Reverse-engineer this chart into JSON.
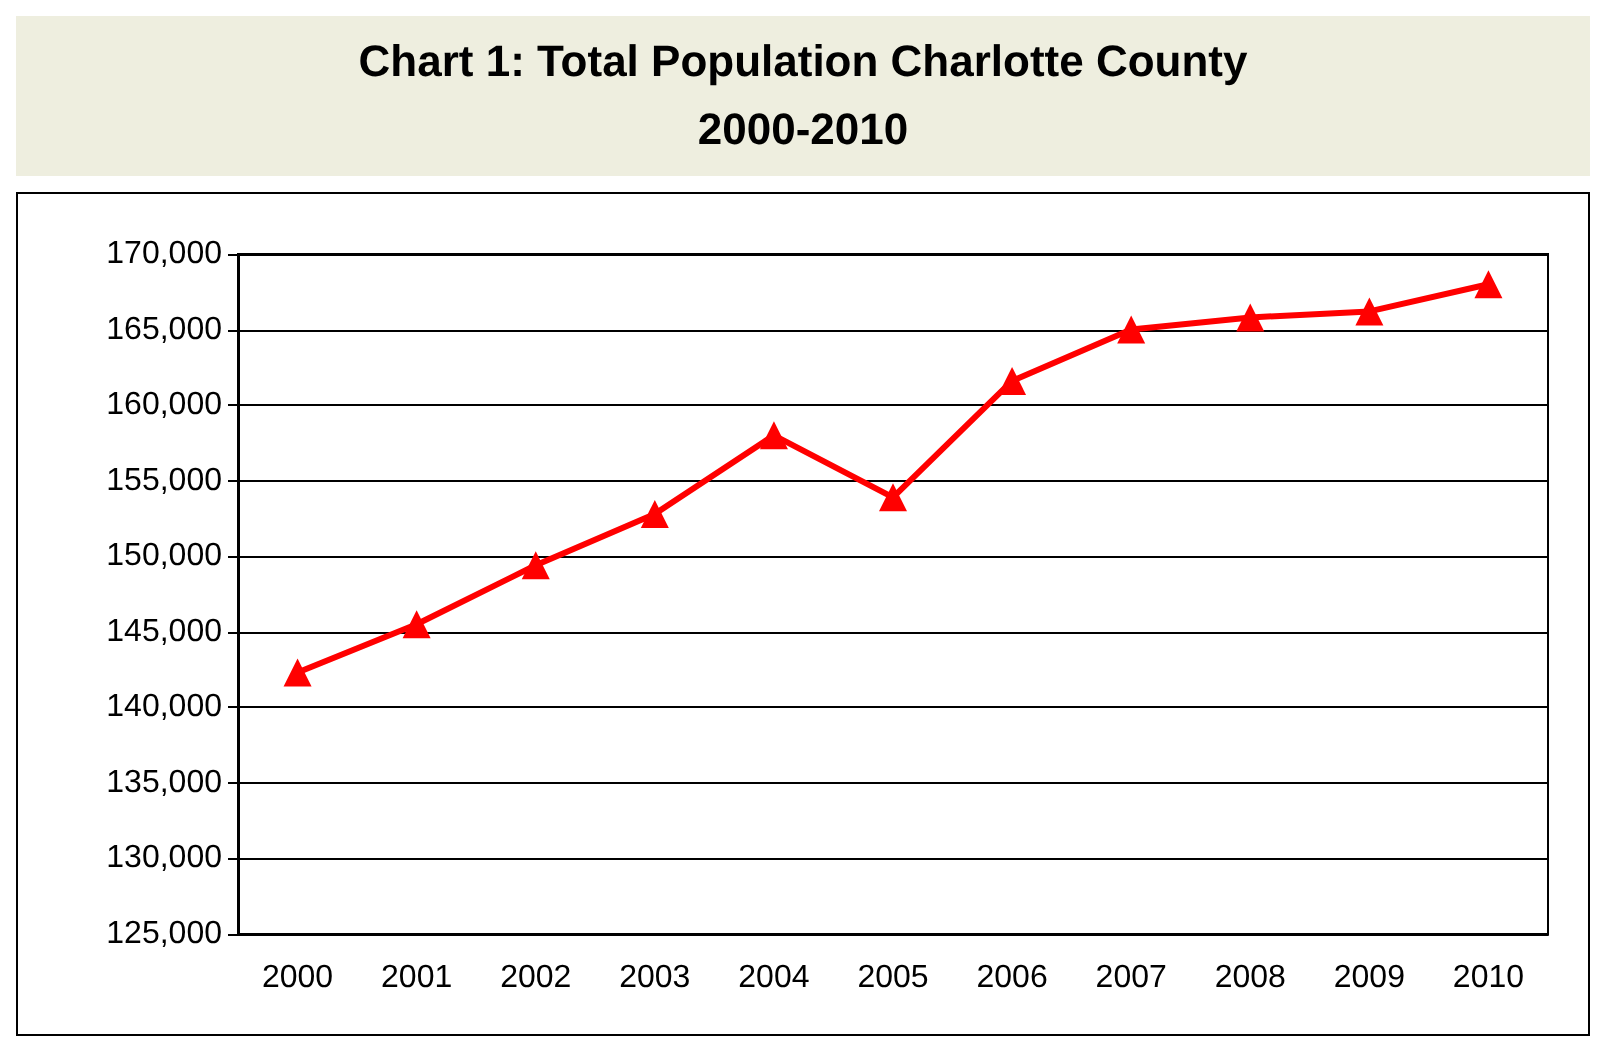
{
  "chart_data": {
    "type": "line",
    "title": "Chart 1: Total Population Charlotte County\n2000-2010",
    "categories": [
      "2000",
      "2001",
      "2002",
      "2003",
      "2004",
      "2005",
      "2006",
      "2007",
      "2008",
      "2009",
      "2010"
    ],
    "series": [
      {
        "color": "#ff0000",
        "values": [
          142300,
          145500,
          149400,
          152800,
          158000,
          153900,
          161600,
          165000,
          165800,
          166200,
          168000
        ]
      }
    ],
    "ylim": [
      125000,
      170000
    ],
    "yticks": [
      {
        "value": 125000,
        "label": "125,000"
      },
      {
        "value": 130000,
        "label": "130,000"
      },
      {
        "value": 135000,
        "label": "135,000"
      },
      {
        "value": 140000,
        "label": "140,000"
      },
      {
        "value": 145000,
        "label": "145,000"
      },
      {
        "value": 150000,
        "label": "150,000"
      },
      {
        "value": 155000,
        "label": "155,000"
      },
      {
        "value": 160000,
        "label": "160,000"
      },
      {
        "value": 165000,
        "label": "165,000"
      },
      {
        "value": 170000,
        "label": "170,000"
      }
    ],
    "grid": "y",
    "marker": "triangle",
    "line_style": "solid"
  }
}
